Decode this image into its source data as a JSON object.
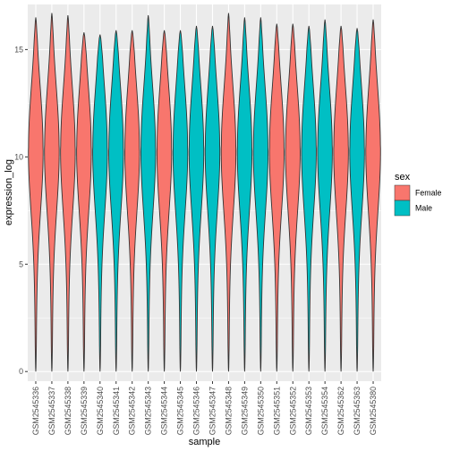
{
  "chart_data": {
    "type": "violin",
    "xlabel": "sample",
    "ylabel": "expression_log",
    "ylim": [
      -0.45,
      17.1
    ],
    "yticks": [
      0,
      5,
      10,
      15
    ],
    "grid": true,
    "legend": {
      "title": "sex",
      "placement": "right",
      "entries": [
        {
          "label": "Female",
          "color": "#F8766D"
        },
        {
          "label": "Male",
          "color": "#00BFC4"
        }
      ]
    },
    "categories": [
      "GSM2545336",
      "GSM2545337",
      "GSM2545338",
      "GSM2545339",
      "GSM2545340",
      "GSM2545341",
      "GSM2545342",
      "GSM2545343",
      "GSM2545344",
      "GSM2545345",
      "GSM2545346",
      "GSM2545347",
      "GSM2545348",
      "GSM2545349",
      "GSM2545350",
      "GSM2545351",
      "GSM2545352",
      "GSM2545353",
      "GSM2545354",
      "GSM2545362",
      "GSM2545363",
      "GSM2545380"
    ],
    "sex": [
      "Female",
      "Female",
      "Female",
      "Female",
      "Male",
      "Male",
      "Female",
      "Male",
      "Female",
      "Male",
      "Male",
      "Male",
      "Female",
      "Male",
      "Male",
      "Female",
      "Female",
      "Male",
      "Male",
      "Female",
      "Male",
      "Female"
    ],
    "max_values": [
      16.5,
      16.7,
      16.6,
      15.8,
      15.7,
      15.9,
      15.9,
      16.6,
      15.9,
      15.9,
      16.1,
      16.1,
      16.7,
      16.5,
      16.5,
      16.2,
      16.2,
      16.1,
      16.4,
      16.1,
      16.0,
      16.4
    ],
    "min_value": 0,
    "peak_value": 10.4
  }
}
